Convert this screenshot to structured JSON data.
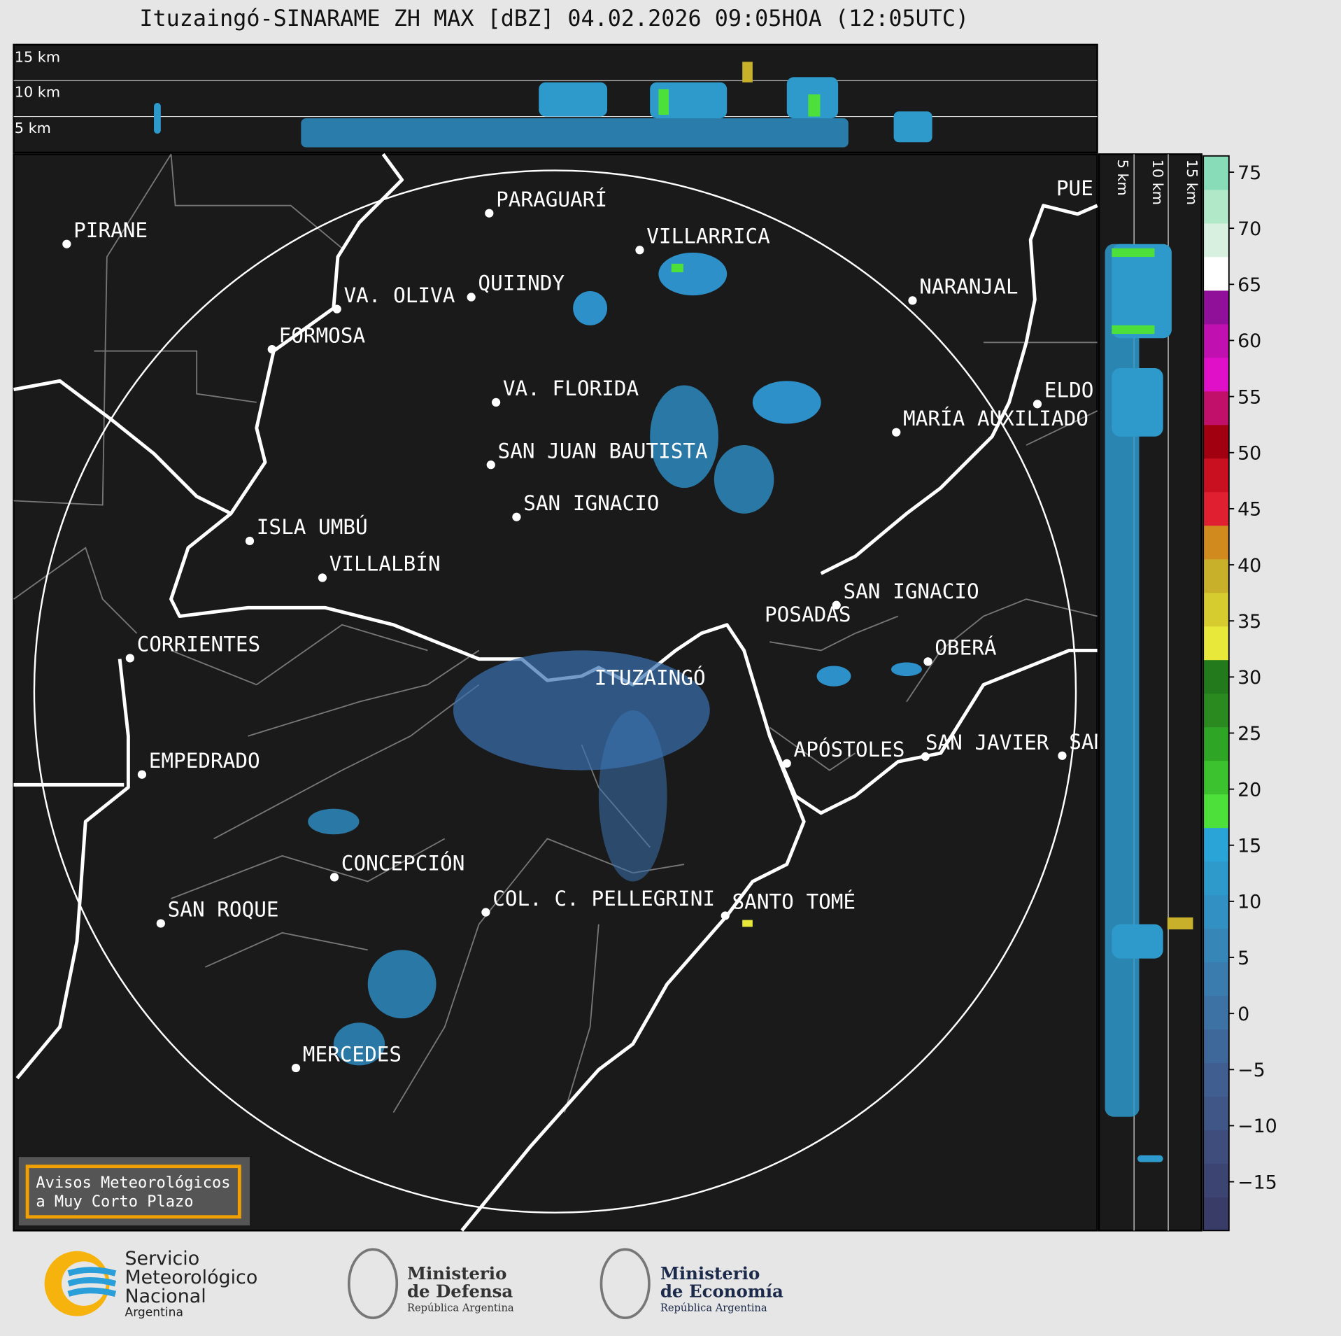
{
  "title": "Ituzaingó-SINARAME ZH MAX [dBZ] 04.02.2026 09:05HOA (12:05UTC)",
  "top_panel": {
    "heights": [
      "15 km",
      "10 km",
      "5 km"
    ]
  },
  "side_panel": {
    "heights": [
      "5 km",
      "10 km",
      "15 km"
    ]
  },
  "cities": [
    "PIRANE",
    "PARAGUARÍ",
    "VILLARRICA",
    "VA. OLIVA",
    "QUIINDY",
    "NARANJAL",
    "FORMOSA",
    "PUE",
    "VA. FLORIDA",
    "ELDO",
    "MARÍA AUXILIADO",
    "SAN JUAN BAUTISTA",
    "SAN IGNACIO",
    "ISLA UMBÚ",
    "VILLALBÍN",
    "SAN IGNACIO",
    "POSADAS",
    "CORRIENTES",
    "ITUZAINGÓ",
    "OBERÁ",
    "EMPEDRADO",
    "APÓSTOLES",
    "SAN JAVIER",
    "SAN",
    "CONCEPCIÓN",
    "COL. C. PELLEGRINI",
    "SANTO TOMÉ",
    "SAN ROQUE",
    "MERCEDES"
  ],
  "colorbar": {
    "range": [
      -19.35,
      76.45
    ],
    "ticks": [
      {
        "value": -15,
        "label": "−15"
      },
      {
        "value": -10,
        "label": "−10"
      },
      {
        "value": -5,
        "label": "−5"
      },
      0,
      5,
      10,
      15,
      20,
      25,
      30,
      35,
      40,
      45,
      50,
      55,
      60,
      65,
      70,
      75
    ],
    "colors": [
      "#3a3c68",
      "#3c4472",
      "#3e4d7c",
      "#3f5686",
      "#405f90",
      "#3f689a",
      "#3d72a4",
      "#3a7cae",
      "#3686b8",
      "#3290c2",
      "#2e9acc",
      "#2aa4d6",
      "#4ee03a",
      "#3cc22e",
      "#2fa526",
      "#2a8a20",
      "#237a1c",
      "#e8e83a",
      "#d6cc30",
      "#c8b02a",
      "#d08a1e",
      "#e02030",
      "#c81020",
      "#a00010",
      "#c0106a",
      "#e010c8",
      "#c010b0",
      "#90109a",
      "#ffffff",
      "#d8f0e0",
      "#b0e8c8",
      "#88dcb8"
    ]
  },
  "warning_box": [
    "Avisos Meteorológicos",
    "a Muy Corto Plazo"
  ],
  "logos": {
    "smn": [
      "Servicio",
      "Meteorológico",
      "Nacional",
      "Argentina"
    ],
    "defensa": [
      "Ministerio",
      "de Defensa",
      "República Argentina"
    ],
    "economia": [
      "Ministerio",
      "de Economía",
      "República Argentina"
    ]
  }
}
